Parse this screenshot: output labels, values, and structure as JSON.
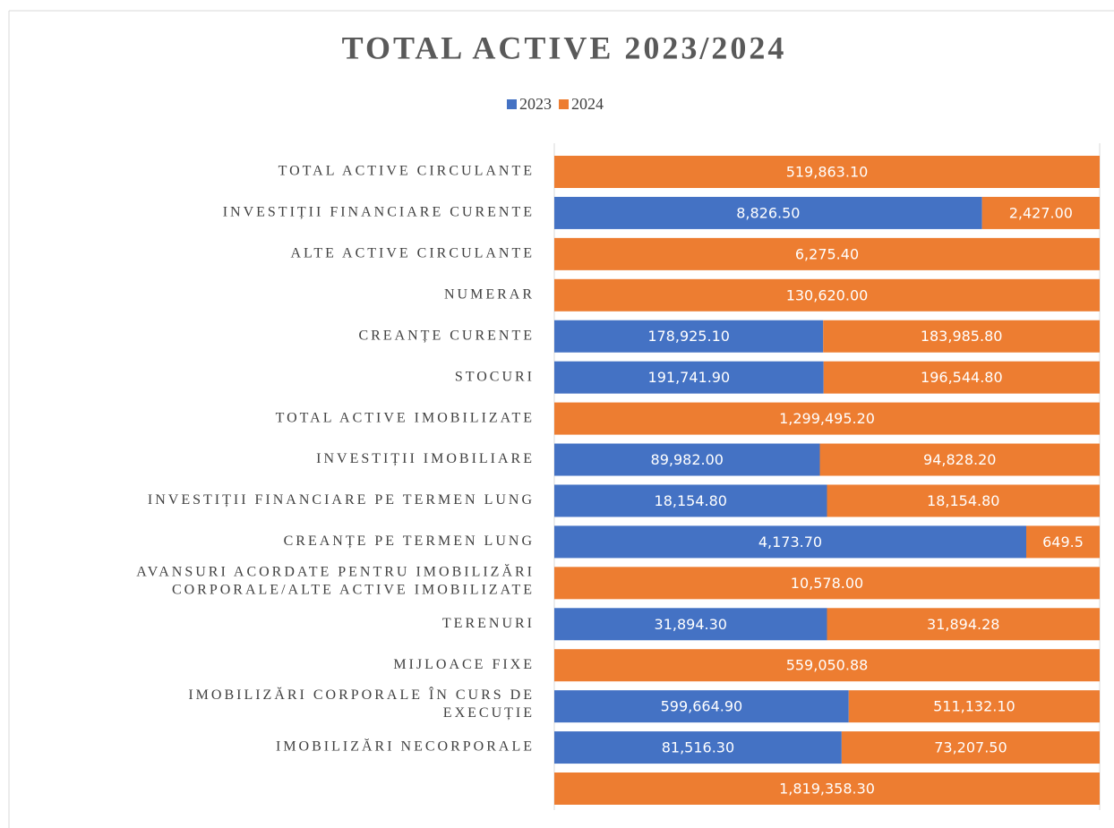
{
  "chart_data": {
    "type": "bar",
    "stacking": "percent",
    "orientation": "horizontal",
    "title": "TOTAL ACTIVE 2023/2024",
    "categories": [
      "TOTAL ACTIVE CIRCULANTE",
      "INVESTIȚII FINANCIARE CURENTE",
      "ALTE ACTIVE CIRCULANTE",
      "NUMERAR",
      "CREANȚE CURENTE",
      "STOCURI",
      "TOTAL ACTIVE IMOBILIZATE",
      "INVESTIȚII IMOBILIARE",
      "INVESTIȚII FINANCIARE PE TERMEN LUNG",
      "CREANȚE PE TERMEN LUNG",
      "AVANSURI ACORDATE PENTRU IMOBILIZĂRI\nCORPORALE/ALTE ACTIVE IMOBILIZATE",
      "TERENURI",
      "MIJLOACE FIXE",
      "IMOBILIZĂRI CORPORALE ÎN CURS DE\nEXECUȚIE",
      "IMOBILIZĂRI NECORPORALE",
      null
    ],
    "series": [
      {
        "name": "2023",
        "color": "#4472c4",
        "values": [
          0,
          8826.5,
          0,
          0,
          178925.1,
          191741.9,
          0,
          89982,
          18154.8,
          4173.7,
          0,
          31894.3,
          0,
          599664.9,
          81516.3,
          0
        ],
        "value_labels": [
          "0",
          "8,826.50",
          "0",
          "0",
          "178,925.10",
          "191,741.90",
          "0",
          "89,982.00",
          "18,154.80",
          "4,173.70",
          "0",
          "31,894.30",
          "0",
          "599,664.90",
          "81,516.30",
          "0"
        ]
      },
      {
        "name": "2024",
        "color": "#ed7d31",
        "values": [
          519863.1,
          2427,
          6275.4,
          130620,
          183985.8,
          196544.8,
          1299495.2,
          94828.2,
          18154.8,
          649.5,
          10578,
          31894.28,
          559050.88,
          511132.1,
          73207.5,
          1819358.3
        ],
        "value_labels": [
          "519,863.10",
          "2,427.00",
          "6,275.40",
          "130,620.00",
          "183,985.80",
          "196,544.80",
          "1,299,495.20",
          "94,828.20",
          "18,154.80",
          "649.5",
          "10,578.00",
          "31,894.28",
          "559,050.88",
          "511,132.10",
          "73,207.50",
          "1,819,358.30"
        ]
      }
    ],
    "legend": "top"
  }
}
